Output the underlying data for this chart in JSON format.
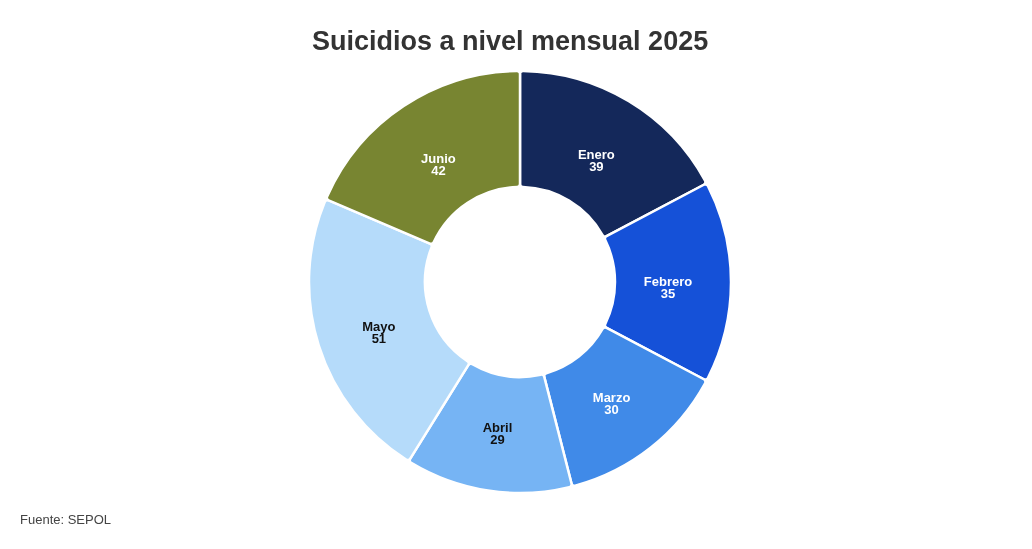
{
  "chart_data": {
    "type": "donut",
    "title": "Suicidios a nivel mensual 2025",
    "categories": [
      "Enero",
      "Febrero",
      "Marzo",
      "Abril",
      "Mayo",
      "Junio"
    ],
    "values": [
      39,
      35,
      30,
      29,
      51,
      42
    ],
    "colors": [
      "#14285a",
      "#1551d8",
      "#408ae8",
      "#76b4f4",
      "#b5dbfa",
      "#788531"
    ],
    "data_labels": true,
    "annotations": [
      "Fuente: SEPOL"
    ]
  }
}
